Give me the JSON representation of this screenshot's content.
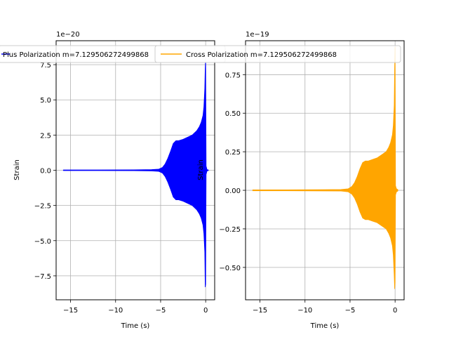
{
  "chart_data": [
    {
      "type": "line",
      "title": "",
      "xlabel": "Time (s)",
      "ylabel": "Strain",
      "offset_text": "1e−20",
      "xlim": [
        -16.6,
        1.0
      ],
      "ylim": [
        -9.2,
        9.2
      ],
      "xticks": [
        -15,
        -10,
        -5,
        0
      ],
      "xtick_labels": [
        "−15",
        "−10",
        "−5",
        "0"
      ],
      "yticks": [
        -7.5,
        -5.0,
        -2.5,
        0.0,
        2.5,
        5.0,
        7.5
      ],
      "ytick_labels": [
        "−7.5",
        "−5.0",
        "−2.5",
        "0.0",
        "2.5",
        "5.0",
        "7.5"
      ],
      "grid": true,
      "color": "#0000ff",
      "series": [
        {
          "name": "Plus Polarization m=7.129506272499868",
          "envelope": {
            "x": [
              -15.8,
              -12.0,
              -8.0,
              -6.0,
              -5.2,
              -4.8,
              -4.5,
              -4.2,
              -3.9,
              -3.6,
              -3.3,
              -3.0,
              -2.5,
              -2.0,
              -1.5,
              -1.0,
              -0.7,
              -0.5,
              -0.3,
              -0.2,
              -0.1,
              -0.05,
              0.0,
              0.05,
              0.15,
              0.3
            ],
            "upper": [
              0.02,
              0.02,
              0.03,
              0.05,
              0.08,
              0.2,
              0.45,
              0.85,
              1.35,
              1.9,
              2.1,
              2.1,
              2.2,
              2.35,
              2.5,
              2.8,
              3.1,
              3.4,
              3.9,
              4.5,
              5.8,
              7.3,
              8.0,
              0.3,
              0.05,
              0.02
            ],
            "lower": [
              -0.02,
              -0.02,
              -0.03,
              -0.05,
              -0.08,
              -0.2,
              -0.45,
              -0.85,
              -1.35,
              -1.9,
              -2.1,
              -2.1,
              -2.2,
              -2.35,
              -2.5,
              -2.8,
              -3.1,
              -3.4,
              -3.9,
              -4.5,
              -5.8,
              -8.3,
              -8.1,
              -0.3,
              -0.05,
              -0.02
            ]
          }
        }
      ],
      "legend": {
        "placement": "top"
      }
    },
    {
      "type": "line",
      "title": "",
      "xlabel": "Time (s)",
      "ylabel": "Strain",
      "offset_text": "1e−19",
      "xlim": [
        -16.6,
        1.0
      ],
      "ylim": [
        -0.71,
        0.97
      ],
      "xticks": [
        -15,
        -10,
        -5,
        0
      ],
      "xtick_labels": [
        "−15",
        "−10",
        "−5",
        "0"
      ],
      "yticks": [
        -0.5,
        -0.25,
        0.0,
        0.25,
        0.5,
        0.75
      ],
      "ytick_labels": [
        "−0.50",
        "−0.25",
        "0.00",
        "0.25",
        "0.50",
        "0.75"
      ],
      "grid": true,
      "color": "#ffa500",
      "series": [
        {
          "name": "Cross Polarization m=7.129506272499868",
          "envelope": {
            "x": [
              -15.8,
              -12.0,
              -8.0,
              -6.0,
              -5.2,
              -4.8,
              -4.5,
              -4.2,
              -3.9,
              -3.6,
              -3.3,
              -3.0,
              -2.5,
              -2.0,
              -1.5,
              -1.0,
              -0.7,
              -0.5,
              -0.3,
              -0.2,
              -0.1,
              -0.05,
              0.0,
              0.05,
              0.15,
              0.3
            ],
            "upper": [
              0.003,
              0.003,
              0.004,
              0.005,
              0.01,
              0.025,
              0.05,
              0.09,
              0.14,
              0.18,
              0.19,
              0.19,
              0.2,
              0.21,
              0.23,
              0.25,
              0.28,
              0.31,
              0.36,
              0.42,
              0.55,
              0.8,
              0.93,
              0.03,
              0.01,
              0.005
            ],
            "lower": [
              -0.003,
              -0.003,
              -0.004,
              -0.005,
              -0.01,
              -0.025,
              -0.05,
              -0.09,
              -0.14,
              -0.18,
              -0.19,
              -0.19,
              -0.2,
              -0.21,
              -0.23,
              -0.25,
              -0.28,
              -0.31,
              -0.36,
              -0.42,
              -0.55,
              -0.64,
              -0.6,
              -0.03,
              -0.01,
              -0.005
            ]
          }
        }
      ],
      "legend": {
        "placement": "top"
      }
    }
  ]
}
